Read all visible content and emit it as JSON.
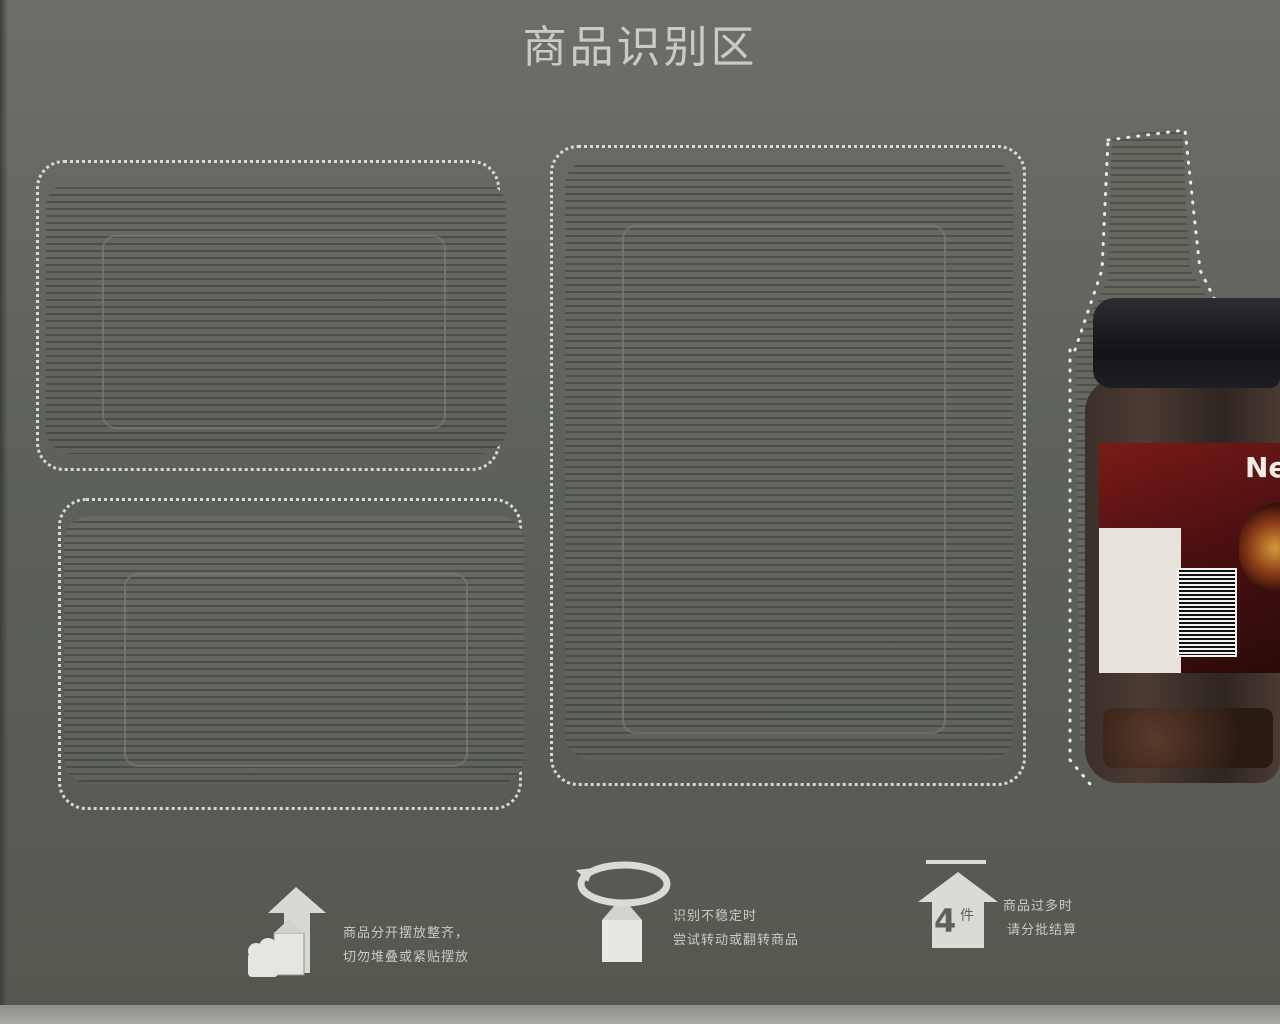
{
  "title": "商品识别区",
  "product": {
    "brand_visible": "Ne"
  },
  "instructions": [
    {
      "icon": "stack-arrow-up-icon",
      "line1": "商品分开摆放整齐，",
      "line2": "切勿堆叠或紧贴摆放"
    },
    {
      "icon": "rotate-item-icon",
      "line1": "识别不稳定时",
      "line2": "尝试转动或翻转商品"
    },
    {
      "icon": "four-items-limit-icon",
      "badge_number": "4",
      "badge_unit": "件",
      "line1": "商品过多时",
      "line2": "请分批结算"
    }
  ],
  "colors": {
    "panel": "#63665f",
    "dots": "#ebf0eb",
    "text": "#c8cbc5"
  }
}
